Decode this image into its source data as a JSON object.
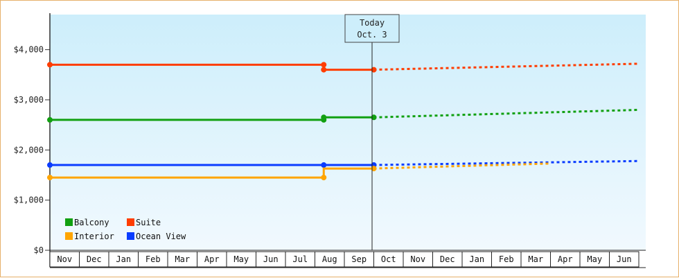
{
  "chart_data": {
    "type": "line",
    "y_ticks": [
      "$0",
      "$1,000",
      "$2,000",
      "$3,000",
      "$4,000"
    ],
    "ylim": [
      0,
      4700
    ],
    "months": [
      "Nov",
      "Dec",
      "Jan",
      "Feb",
      "Mar",
      "Apr",
      "May",
      "Jun",
      "Jul",
      "Aug",
      "Sep",
      "Oct",
      "Nov",
      "Dec",
      "Jan",
      "Feb",
      "Mar",
      "Apr",
      "May",
      "Jun"
    ],
    "today": {
      "line1": "Today",
      "line2": "Oct. 3"
    },
    "legend_placement": "bottom-left",
    "series": [
      {
        "name": "Suite",
        "color": "#ff3d00",
        "actual": [
          [
            0,
            3700
          ],
          [
            9.3,
            3700
          ],
          [
            9.3,
            3600
          ],
          [
            11,
            3600
          ]
        ],
        "forecast": [
          [
            11,
            3600
          ],
          [
            20,
            3720
          ]
        ],
        "markers": [
          [
            0,
            3700
          ],
          [
            9.3,
            3700
          ],
          [
            9.3,
            3600
          ],
          [
            11,
            3600
          ]
        ]
      },
      {
        "name": "Balcony",
        "color": "#11a011",
        "actual": [
          [
            0,
            2600
          ],
          [
            9.3,
            2600
          ],
          [
            9.3,
            2650
          ],
          [
            11,
            2650
          ]
        ],
        "forecast": [
          [
            11,
            2650
          ],
          [
            20,
            2800
          ]
        ],
        "markers": [
          [
            0,
            2600
          ],
          [
            9.3,
            2600
          ],
          [
            9.3,
            2650
          ],
          [
            11,
            2650
          ]
        ]
      },
      {
        "name": "Ocean View",
        "color": "#0a3cff",
        "actual": [
          [
            0,
            1700
          ],
          [
            9.3,
            1700
          ],
          [
            11,
            1700
          ]
        ],
        "forecast": [
          [
            11,
            1700
          ],
          [
            20,
            1780
          ]
        ],
        "markers": [
          [
            0,
            1700
          ],
          [
            9.3,
            1700
          ],
          [
            11,
            1700
          ]
        ]
      },
      {
        "name": "Interior",
        "color": "#ffa500",
        "actual": [
          [
            0,
            1450
          ],
          [
            9.3,
            1450
          ],
          [
            9.3,
            1630
          ],
          [
            11,
            1630
          ]
        ],
        "forecast": [
          [
            11,
            1630
          ],
          [
            17,
            1730
          ]
        ],
        "markers": [
          [
            0,
            1450
          ],
          [
            9.3,
            1450
          ],
          [
            11,
            1630
          ]
        ]
      }
    ],
    "legend": [
      {
        "name": "Balcony",
        "color": "#11a011"
      },
      {
        "name": "Suite",
        "color": "#ff3d00"
      },
      {
        "name": "Interior",
        "color": "#ffa500"
      },
      {
        "name": "Ocean View",
        "color": "#0a3cff"
      }
    ]
  }
}
